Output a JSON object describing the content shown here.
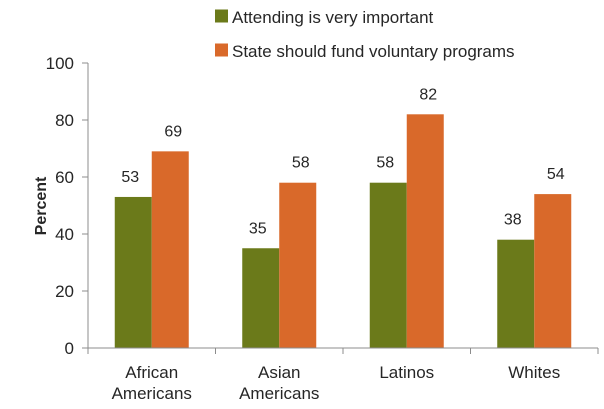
{
  "chart_data": {
    "type": "bar",
    "title": "",
    "xlabel": "",
    "ylabel": "Percent",
    "ylim": [
      0,
      100
    ],
    "yticks": [
      0,
      20,
      40,
      60,
      80,
      100
    ],
    "grid": false,
    "legend_position": "top-right",
    "categories": [
      [
        "African",
        "Americans"
      ],
      [
        "Asian",
        "Americans"
      ],
      [
        "Latinos"
      ],
      [
        "Whites"
      ]
    ],
    "series": [
      {
        "name": "Attending is very important",
        "color": "#6b7a1a",
        "values": [
          53,
          35,
          58,
          38
        ]
      },
      {
        "name": "State should fund voluntary programs",
        "color": "#d9692a",
        "values": [
          69,
          58,
          82,
          54
        ]
      }
    ]
  }
}
